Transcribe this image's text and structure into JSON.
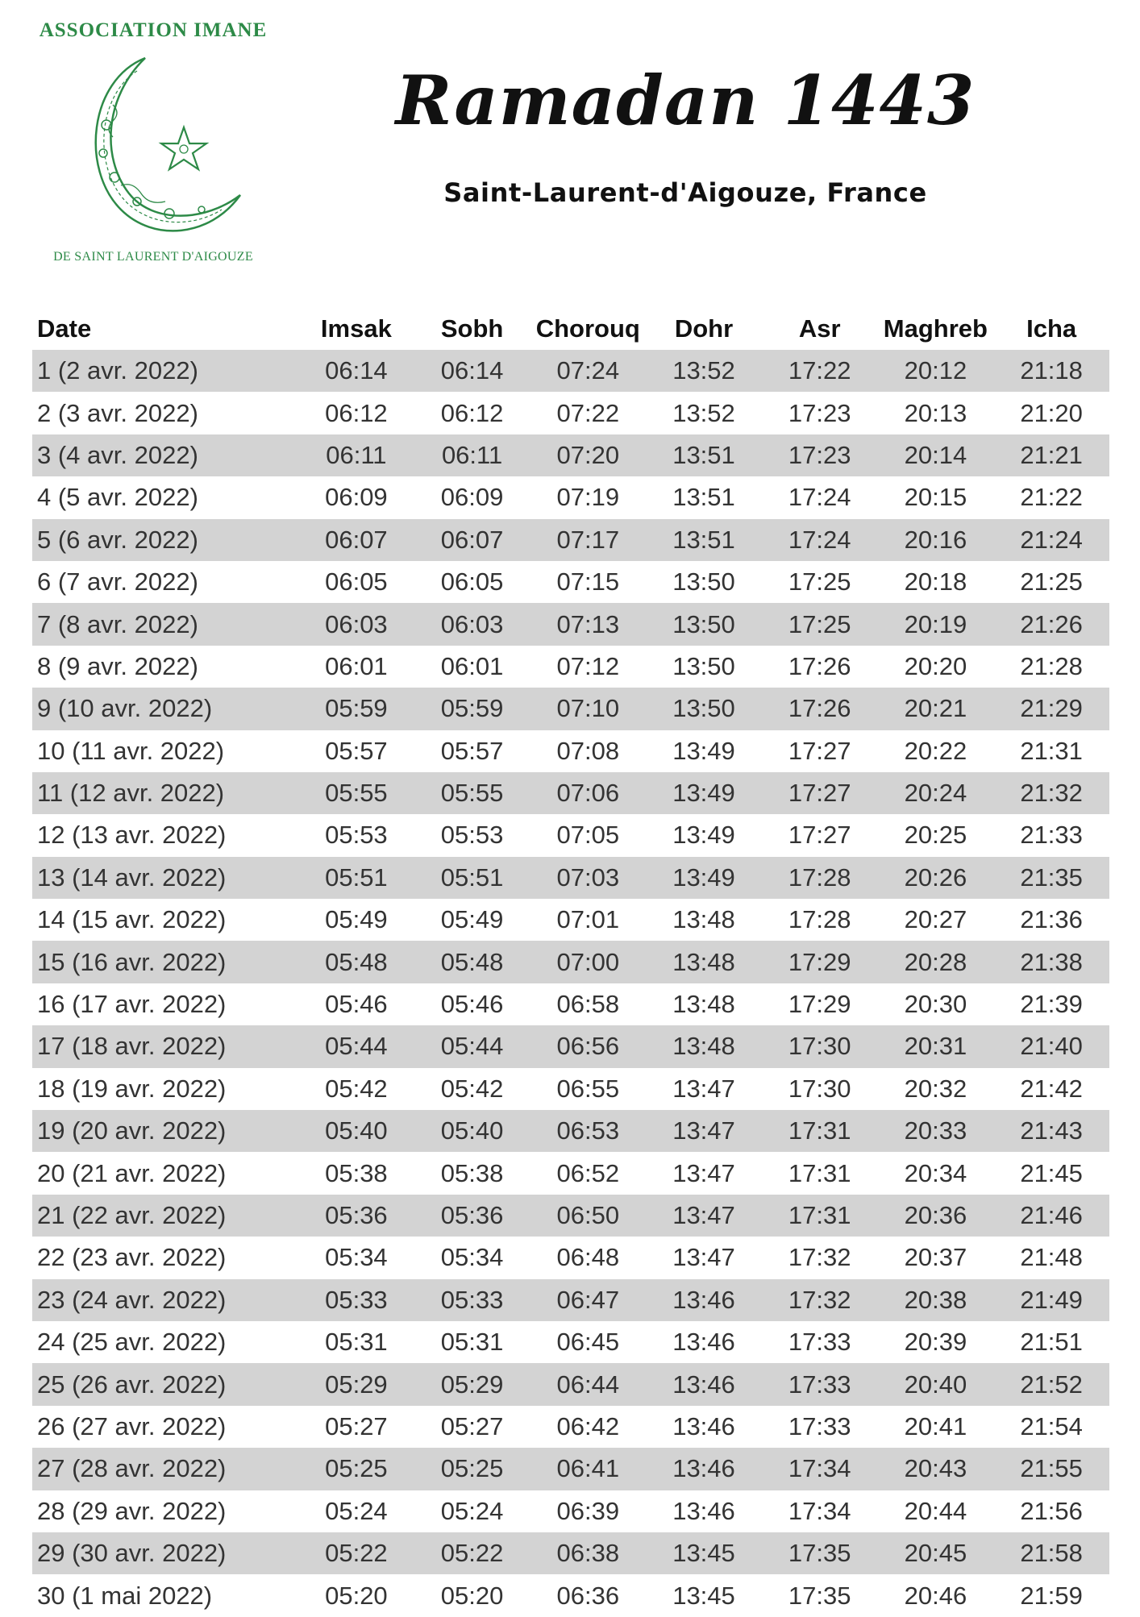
{
  "logo": {
    "top_text": "ASSOCIATION IMANE",
    "bottom_text": "DE SAINT LAURENT D'AIGOUZE",
    "icon": "crescent-star-icon",
    "color": "#2d8a47"
  },
  "title": "Ramadan 1443",
  "subtitle": "Saint-Laurent-d'Aigouze, France",
  "table": {
    "headers": [
      "Date",
      "Imsak",
      "Sobh",
      "Chorouq",
      "Dohr",
      "Asr",
      "Maghreb",
      "Icha"
    ],
    "shade_color": "#d3d3d3",
    "rows": [
      [
        "1 (2 avr. 2022)",
        "06:14",
        "06:14",
        "07:24",
        "13:52",
        "17:22",
        "20:12",
        "21:18"
      ],
      [
        "2 (3 avr. 2022)",
        "06:12",
        "06:12",
        "07:22",
        "13:52",
        "17:23",
        "20:13",
        "21:20"
      ],
      [
        "3 (4 avr. 2022)",
        "06:11",
        "06:11",
        "07:20",
        "13:51",
        "17:23",
        "20:14",
        "21:21"
      ],
      [
        "4 (5 avr. 2022)",
        "06:09",
        "06:09",
        "07:19",
        "13:51",
        "17:24",
        "20:15",
        "21:22"
      ],
      [
        "5 (6 avr. 2022)",
        "06:07",
        "06:07",
        "07:17",
        "13:51",
        "17:24",
        "20:16",
        "21:24"
      ],
      [
        "6 (7 avr. 2022)",
        "06:05",
        "06:05",
        "07:15",
        "13:50",
        "17:25",
        "20:18",
        "21:25"
      ],
      [
        "7 (8 avr. 2022)",
        "06:03",
        "06:03",
        "07:13",
        "13:50",
        "17:25",
        "20:19",
        "21:26"
      ],
      [
        "8 (9 avr. 2022)",
        "06:01",
        "06:01",
        "07:12",
        "13:50",
        "17:26",
        "20:20",
        "21:28"
      ],
      [
        "9 (10 avr. 2022)",
        "05:59",
        "05:59",
        "07:10",
        "13:50",
        "17:26",
        "20:21",
        "21:29"
      ],
      [
        "10 (11 avr. 2022)",
        "05:57",
        "05:57",
        "07:08",
        "13:49",
        "17:27",
        "20:22",
        "21:31"
      ],
      [
        "11 (12 avr. 2022)",
        "05:55",
        "05:55",
        "07:06",
        "13:49",
        "17:27",
        "20:24",
        "21:32"
      ],
      [
        "12 (13 avr. 2022)",
        "05:53",
        "05:53",
        "07:05",
        "13:49",
        "17:27",
        "20:25",
        "21:33"
      ],
      [
        "13 (14 avr. 2022)",
        "05:51",
        "05:51",
        "07:03",
        "13:49",
        "17:28",
        "20:26",
        "21:35"
      ],
      [
        "14 (15 avr. 2022)",
        "05:49",
        "05:49",
        "07:01",
        "13:48",
        "17:28",
        "20:27",
        "21:36"
      ],
      [
        "15 (16 avr. 2022)",
        "05:48",
        "05:48",
        "07:00",
        "13:48",
        "17:29",
        "20:28",
        "21:38"
      ],
      [
        "16 (17 avr. 2022)",
        "05:46",
        "05:46",
        "06:58",
        "13:48",
        "17:29",
        "20:30",
        "21:39"
      ],
      [
        "17 (18 avr. 2022)",
        "05:44",
        "05:44",
        "06:56",
        "13:48",
        "17:30",
        "20:31",
        "21:40"
      ],
      [
        "18 (19 avr. 2022)",
        "05:42",
        "05:42",
        "06:55",
        "13:47",
        "17:30",
        "20:32",
        "21:42"
      ],
      [
        "19 (20 avr. 2022)",
        "05:40",
        "05:40",
        "06:53",
        "13:47",
        "17:31",
        "20:33",
        "21:43"
      ],
      [
        "20 (21 avr. 2022)",
        "05:38",
        "05:38",
        "06:52",
        "13:47",
        "17:31",
        "20:34",
        "21:45"
      ],
      [
        "21 (22 avr. 2022)",
        "05:36",
        "05:36",
        "06:50",
        "13:47",
        "17:31",
        "20:36",
        "21:46"
      ],
      [
        "22 (23 avr. 2022)",
        "05:34",
        "05:34",
        "06:48",
        "13:47",
        "17:32",
        "20:37",
        "21:48"
      ],
      [
        "23 (24 avr. 2022)",
        "05:33",
        "05:33",
        "06:47",
        "13:46",
        "17:32",
        "20:38",
        "21:49"
      ],
      [
        "24 (25 avr. 2022)",
        "05:31",
        "05:31",
        "06:45",
        "13:46",
        "17:33",
        "20:39",
        "21:51"
      ],
      [
        "25 (26 avr. 2022)",
        "05:29",
        "05:29",
        "06:44",
        "13:46",
        "17:33",
        "20:40",
        "21:52"
      ],
      [
        "26 (27 avr. 2022)",
        "05:27",
        "05:27",
        "06:42",
        "13:46",
        "17:33",
        "20:41",
        "21:54"
      ],
      [
        "27 (28 avr. 2022)",
        "05:25",
        "05:25",
        "06:41",
        "13:46",
        "17:34",
        "20:43",
        "21:55"
      ],
      [
        "28 (29 avr. 2022)",
        "05:24",
        "05:24",
        "06:39",
        "13:46",
        "17:34",
        "20:44",
        "21:56"
      ],
      [
        "29 (30 avr. 2022)",
        "05:22",
        "05:22",
        "06:38",
        "13:45",
        "17:35",
        "20:45",
        "21:58"
      ],
      [
        "30 (1 mai 2022)",
        "05:20",
        "05:20",
        "06:36",
        "13:45",
        "17:35",
        "20:46",
        "21:59"
      ]
    ]
  }
}
